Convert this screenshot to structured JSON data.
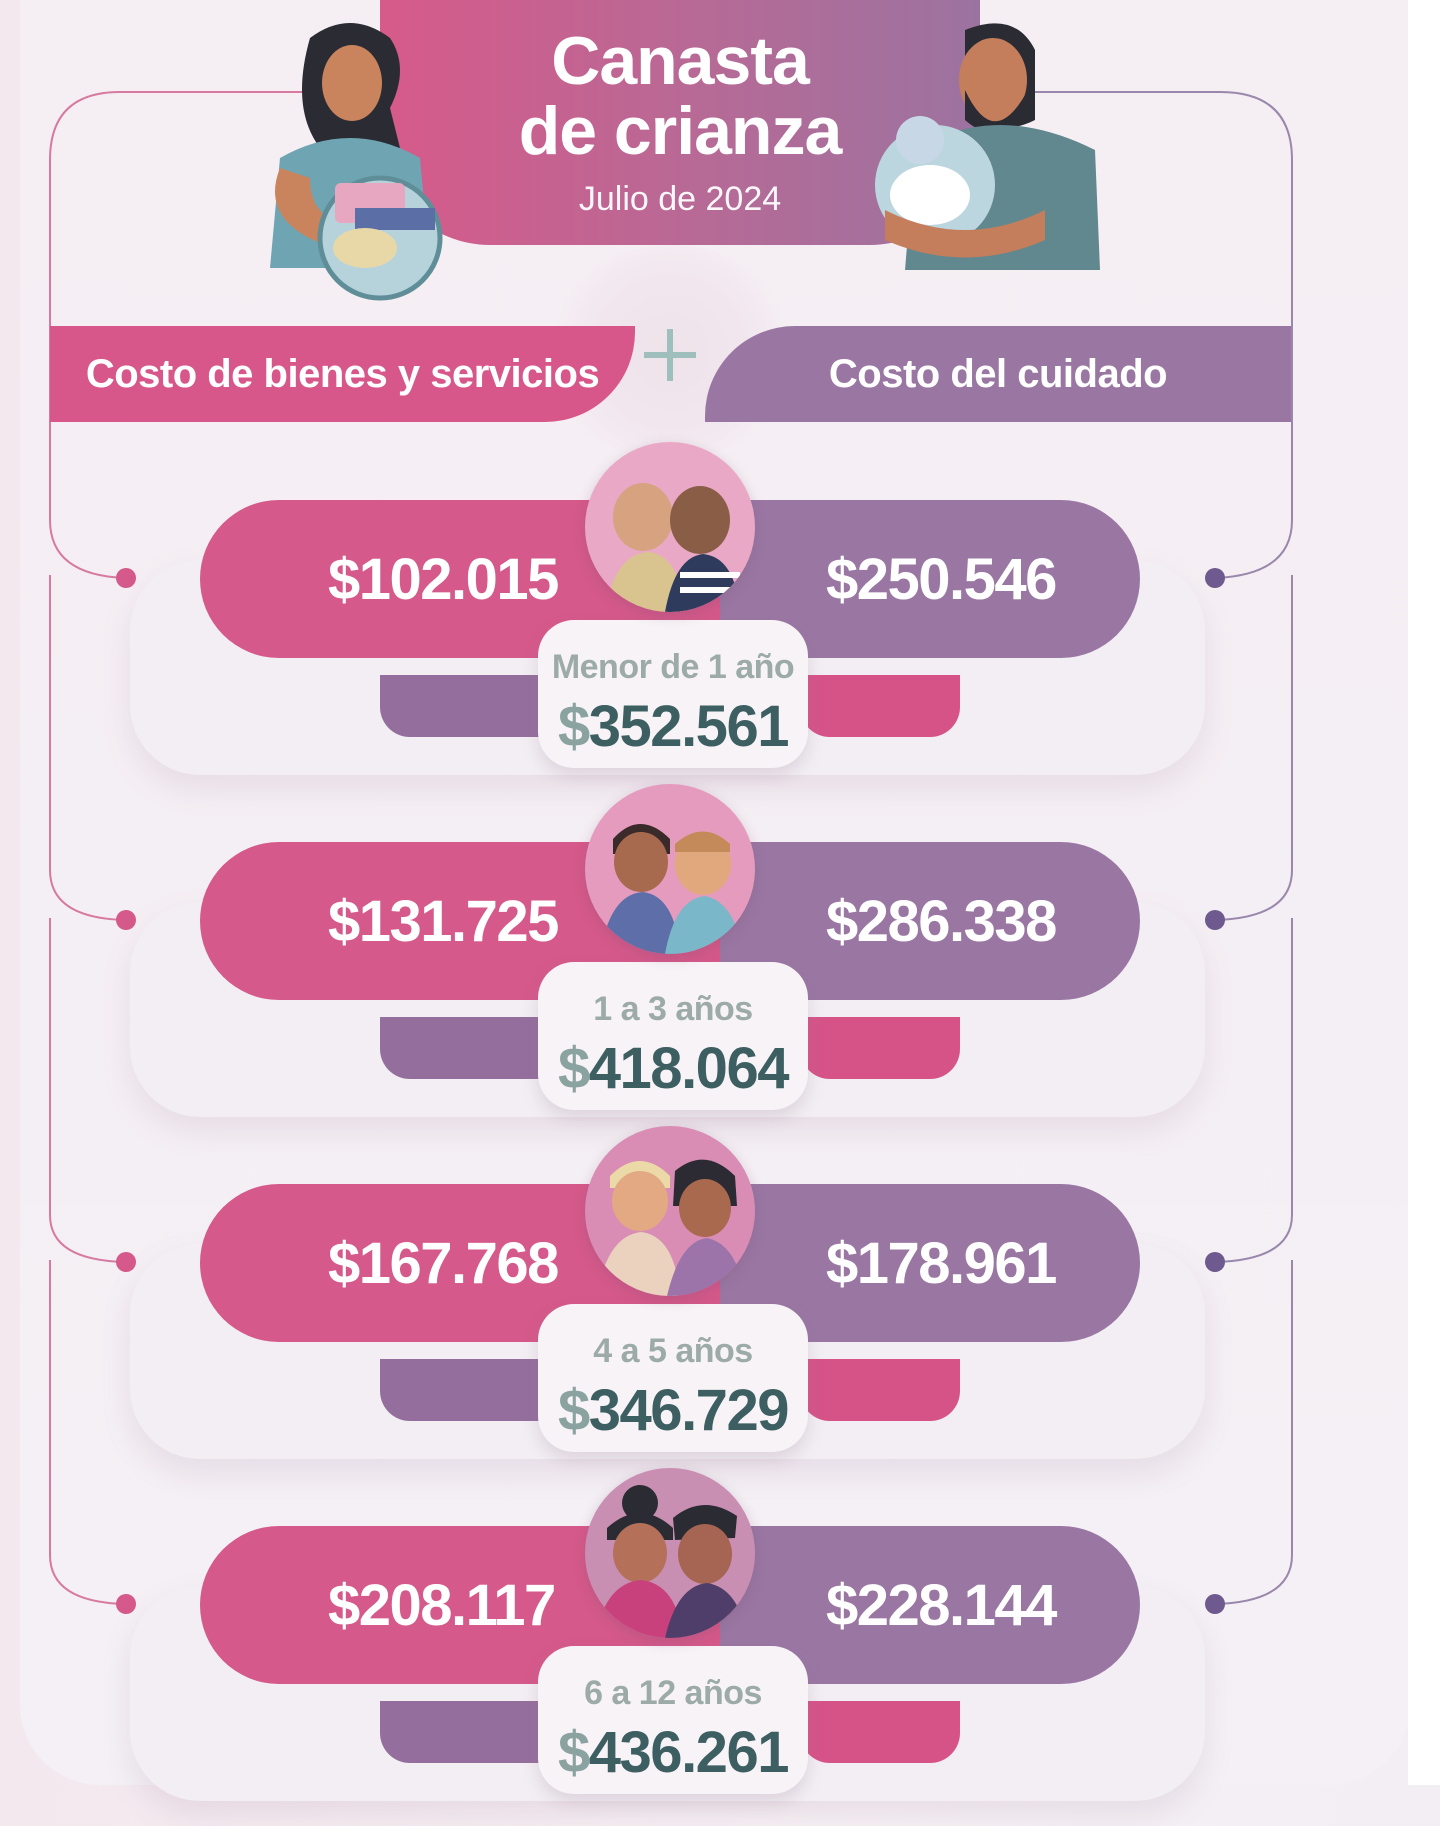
{
  "header": {
    "title_line1": "Canasta",
    "title_line2": "de crianza",
    "subtitle": "Julio de 2024"
  },
  "columns": {
    "left_label": "Costo de bienes y servicios",
    "right_label": "Costo del cuidado",
    "operator": "+"
  },
  "rows": [
    {
      "age": "Menor de 1 año",
      "goods": "$102.015",
      "care": "$250.546",
      "total_symbol": "$",
      "total": "352.561",
      "avatar_icon": "babies-icon"
    },
    {
      "age": "1 a 3 años",
      "goods": "$131.725",
      "care": "$286.338",
      "total_symbol": "$",
      "total": "418.064",
      "avatar_icon": "toddlers-icon"
    },
    {
      "age": "4 a 5 años",
      "goods": "$167.768",
      "care": "$178.961",
      "total_symbol": "$",
      "total": "346.729",
      "avatar_icon": "preschoolers-icon"
    },
    {
      "age": "6 a 12 años",
      "goods": "$208.117",
      "care": "$228.144",
      "total_symbol": "$",
      "total": "436.261",
      "avatar_icon": "children-icon"
    }
  ],
  "colors": {
    "pink": "#d5598a",
    "mauve": "#9a77a3",
    "teal_text": "#3d5f62",
    "grey_label": "#9caaa8"
  }
}
